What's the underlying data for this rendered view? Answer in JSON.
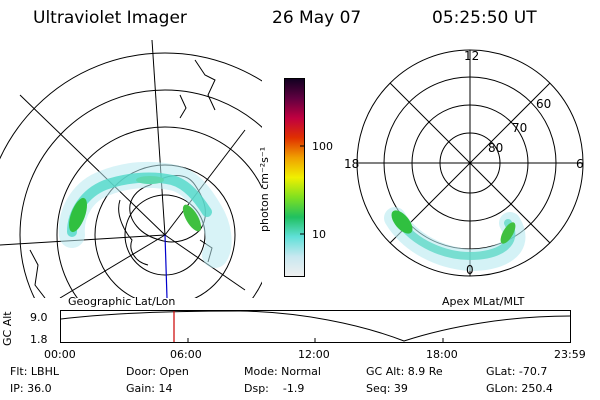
{
  "header": {
    "instrument": "Ultraviolet Imager",
    "date": "26 May 07",
    "time": "05:25:50 UT"
  },
  "panels": {
    "left_caption": "Geographic Lat/Lon",
    "right_caption": "Apex MLat/MLT"
  },
  "polar_plot": {
    "mlt_labels": [
      "12",
      "18",
      "6",
      "0"
    ],
    "mlat_labels": [
      "60",
      "70",
      "80"
    ]
  },
  "colorbar": {
    "unit_label": "photon cm⁻²s⁻¹",
    "ticks": [
      "100",
      "10"
    ],
    "colors": [
      "#f0f0f0",
      "#c8e8f0",
      "#60e0d8",
      "#20c060",
      "#80e020",
      "#f0f000",
      "#f0a000",
      "#e03000",
      "#c00040",
      "#600040",
      "#100020"
    ]
  },
  "altitude_plot": {
    "ylabel": "GC Alt",
    "yticks": [
      "9.0",
      "1.8"
    ],
    "xticks": [
      "00:00",
      "06:00",
      "12:00",
      "18:00",
      "23:59"
    ],
    "marker_color": "#cc0000"
  },
  "footer": {
    "filter": "Flt: LBHL",
    "ip": "IP: 36.0",
    "door": "Door: Open",
    "gain": "Gain: 14",
    "mode": "Mode: Normal",
    "dsp": "Dsp:    -1.9",
    "gc_alt": "GC Alt: 8.9 Re",
    "seq": "Seq: 39",
    "glat": "GLat: -70.7",
    "glon": "GLon: 250.4"
  }
}
